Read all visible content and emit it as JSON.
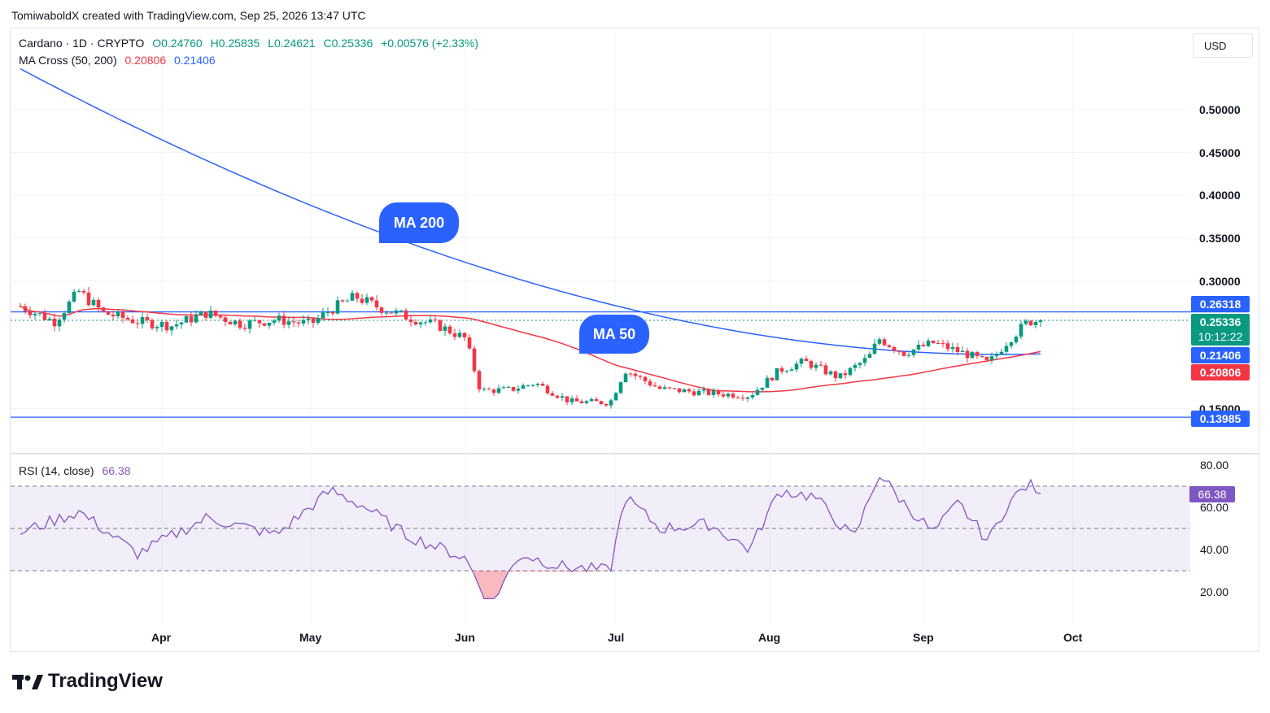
{
  "header": {
    "credit": "TomiwaboldX created with TradingView.com, Sep 25, 2026 13:47 UTC"
  },
  "symbol": {
    "name": "Cardano · 1D · CRYPTO",
    "open": "O0.24760",
    "high": "H0.25835",
    "low": "L0.24621",
    "close": "C0.25336",
    "change": "+0.00576 (+2.33%)"
  },
  "ma_cross": {
    "label": "MA Cross (50, 200)",
    "ma50": "0.20806",
    "ma200": "0.21406"
  },
  "currency_button": "USD",
  "price_axis": [
    "0.50000",
    "0.45000",
    "0.40000",
    "0.35000",
    "0.30000",
    "0.15000"
  ],
  "price_tags": {
    "resistance": "0.26318",
    "last_price": "0.25336",
    "countdown": "10:12:22",
    "ma200": "0.21406",
    "ma50": "0.20806",
    "support": "0.13985"
  },
  "annotations": {
    "ma200": "MA 200",
    "ma50": "MA 50"
  },
  "rsi": {
    "label": "RSI (14, close)",
    "value": "66.38",
    "axis": [
      "80.00",
      "60.00",
      "40.00",
      "20.00"
    ]
  },
  "time_axis": [
    "Apr",
    "May",
    "Jun",
    "Jul",
    "Aug",
    "Sep",
    "Oct"
  ],
  "colors": {
    "up": "#089981",
    "down": "#f23645",
    "ma50": "#f23645",
    "ma200": "#2962ff",
    "rsi": "#7e57c2"
  },
  "branding": "TradingView",
  "chart_data": [
    {
      "type": "candlestick",
      "title": "Cardano · 1D · CRYPTO",
      "y_range": [
        0.139,
        0.53
      ],
      "x_range": [
        "Mar",
        "Oct"
      ],
      "close_path": [
        [
          "Mar 3",
          0.27
        ],
        [
          "Mar 10",
          0.252
        ],
        [
          "Mar 15",
          0.287
        ],
        [
          "Mar 20",
          0.262
        ],
        [
          "Mar 27",
          0.252
        ],
        [
          "Apr 3",
          0.247
        ],
        [
          "Apr 10",
          0.262
        ],
        [
          "Apr 17",
          0.249
        ],
        [
          "Apr 24",
          0.254
        ],
        [
          "May 1",
          0.249
        ],
        [
          "May 5",
          0.266
        ],
        [
          "May 10",
          0.281
        ],
        [
          "May 14",
          0.27
        ],
        [
          "May 20",
          0.258
        ],
        [
          "May 27",
          0.246
        ],
        [
          "Jun 1",
          0.232
        ],
        [
          "Jun 4",
          0.171
        ],
        [
          "Jun 10",
          0.172
        ],
        [
          "Jun 15",
          0.18
        ],
        [
          "Jun 22",
          0.158
        ],
        [
          "Jun 30",
          0.157
        ],
        [
          "Jul 3",
          0.195
        ],
        [
          "Jul 10",
          0.173
        ],
        [
          "Jul 20",
          0.168
        ],
        [
          "Jul 28",
          0.165
        ],
        [
          "Aug 3",
          0.195
        ],
        [
          "Aug 8",
          0.205
        ],
        [
          "Aug 15",
          0.186
        ],
        [
          "Aug 21",
          0.21
        ],
        [
          "Aug 23",
          0.232
        ],
        [
          "Aug 28",
          0.215
        ],
        [
          "Sep 3",
          0.227
        ],
        [
          "Sep 10",
          0.213
        ],
        [
          "Sep 14",
          0.203
        ],
        [
          "Sep 18",
          0.23
        ],
        [
          "Sep 22",
          0.252
        ],
        [
          "Sep 25",
          0.2534
        ]
      ],
      "series": [
        {
          "name": "MA 50",
          "last": 0.20806
        },
        {
          "name": "MA 200",
          "last": 0.21406
        }
      ],
      "horizontal_lines": [
        0.26318,
        0.13985
      ]
    },
    {
      "type": "line",
      "title": "RSI (14, close)",
      "y_range": [
        0,
        100
      ],
      "bands": [
        30,
        50,
        70
      ],
      "path": [
        [
          "Mar 3",
          48
        ],
        [
          "Mar 15",
          58
        ],
        [
          "Mar 27",
          38
        ],
        [
          "Apr 10",
          55
        ],
        [
          "Apr 24",
          47
        ],
        [
          "May 5",
          68
        ],
        [
          "May 12",
          60
        ],
        [
          "May 20",
          47
        ],
        [
          "Jun 1",
          36
        ],
        [
          "Jun 6",
          14
        ],
        [
          "Jun 12",
          38
        ],
        [
          "Jun 20",
          32
        ],
        [
          "Jun 30",
          30
        ],
        [
          "Jul 3",
          65
        ],
        [
          "Jul 10",
          50
        ],
        [
          "Jul 20",
          52
        ],
        [
          "Jul 28",
          40
        ],
        [
          "Aug 3",
          68
        ],
        [
          "Aug 10",
          65
        ],
        [
          "Aug 18",
          45
        ],
        [
          "Aug 23",
          76
        ],
        [
          "Aug 28",
          62
        ],
        [
          "Sep 3",
          48
        ],
        [
          "Sep 8",
          62
        ],
        [
          "Sep 14",
          44
        ],
        [
          "Sep 18",
          62
        ],
        [
          "Sep 22",
          71
        ],
        [
          "Sep 25",
          66.38
        ]
      ]
    }
  ]
}
